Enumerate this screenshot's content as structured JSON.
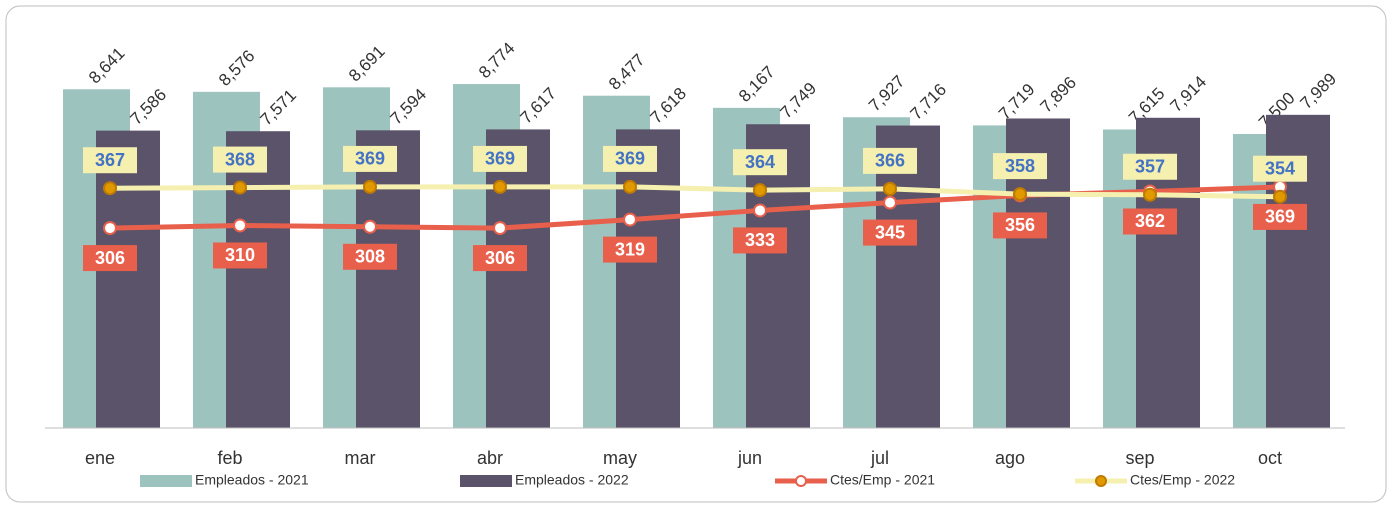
{
  "chart_data": {
    "type": "bar_line",
    "categories": [
      "ene",
      "feb",
      "mar",
      "abr",
      "may",
      "jun",
      "jul",
      "ago",
      "sep",
      "oct"
    ],
    "ylim": [
      0,
      10000
    ],
    "y2lim": [
      0,
      600
    ],
    "series": [
      {
        "name": "Empleados  - 2021",
        "type": "bar",
        "color": "#9dc3bf",
        "values": [
          8641,
          8576,
          8691,
          8774,
          8477,
          8167,
          7927,
          7719,
          7615,
          7500
        ],
        "value_labels": [
          "8,641",
          "8,576",
          "8,691",
          "8,774",
          "8,477",
          "8,167",
          "7,927",
          "7,719",
          "7,615",
          "7,500"
        ]
      },
      {
        "name": "Empleados  - 2022",
        "type": "bar",
        "color": "#5a5369",
        "values": [
          7586,
          7571,
          7594,
          7617,
          7618,
          7749,
          7716,
          7896,
          7914,
          7989
        ],
        "value_labels": [
          "7,586",
          "7,571",
          "7,594",
          "7,617",
          "7,618",
          "7,749",
          "7,716",
          "7,896",
          "7,914",
          "7,989"
        ]
      },
      {
        "name": "Ctes/Emp - 2021",
        "type": "line",
        "axis": "y2",
        "color": "#e8604c",
        "values": [
          306,
          310,
          308,
          306,
          319,
          333,
          345,
          356,
          362,
          369
        ]
      },
      {
        "name": "Ctes/Emp - 2022",
        "type": "line",
        "axis": "y2",
        "color": "#f5f0b0",
        "values": [
          367,
          368,
          369,
          369,
          369,
          364,
          366,
          358,
          357,
          354
        ]
      }
    ]
  }
}
